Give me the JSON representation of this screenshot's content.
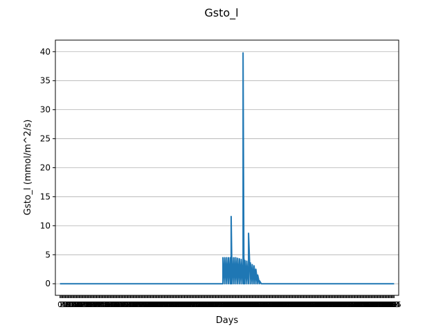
{
  "chart_data": {
    "type": "line",
    "title": "Gsto_l",
    "xlabel": "Days",
    "ylabel": "Gsto_l (mmol/m^2/s)",
    "xlim": [
      -5,
      370
    ],
    "ylim": [
      -2,
      42
    ],
    "yticks": [
      0,
      5,
      10,
      15,
      20,
      25,
      30,
      35,
      40
    ],
    "x_tick_first_label": "0",
    "x_tick_last_label": "365",
    "grid": "y",
    "legend": "none",
    "color": "#1f77b4",
    "series": [
      {
        "x": [
          0,
          178,
          178,
          180,
          180,
          182,
          182,
          184,
          184,
          186,
          186,
          187,
          187,
          188,
          188,
          190,
          190,
          192,
          192,
          194,
          194,
          196,
          196,
          198,
          198,
          200,
          200,
          201,
          201,
          202,
          202,
          204,
          204,
          206,
          206,
          208,
          208,
          210,
          210,
          212,
          212,
          214,
          214,
          216,
          216,
          218,
          218,
          220,
          220,
          365
        ],
        "y": [
          0,
          0,
          4.5,
          0,
          4.5,
          0,
          4.5,
          0,
          4.5,
          0,
          4.5,
          0,
          11.6,
          0,
          4.5,
          0,
          4.5,
          0,
          4.5,
          0,
          4.4,
          0,
          4.3,
          0,
          4.2,
          0,
          39.8,
          0,
          4.3,
          0,
          4.0,
          0,
          3.9,
          0,
          8.7,
          0,
          3.6,
          0,
          3.3,
          0,
          3.1,
          0,
          2.5,
          0,
          1.5,
          0,
          0.5,
          0,
          0,
          0
        ]
      }
    ]
  }
}
